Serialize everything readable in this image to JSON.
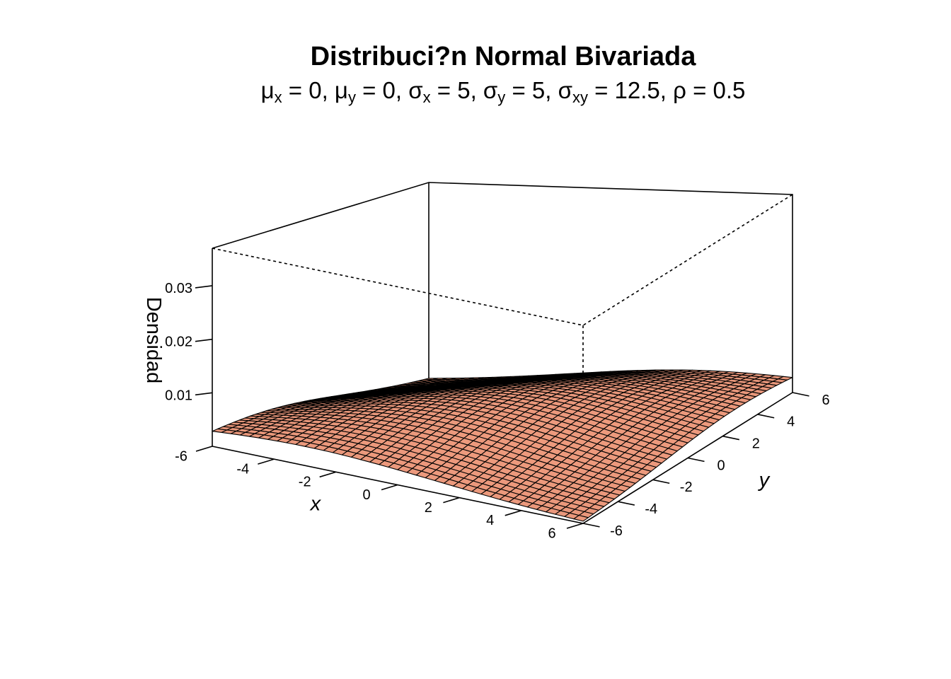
{
  "chart_data": {
    "type": "surface",
    "title": "Distribuci?n Normal Bivariada",
    "subtitle": [
      {
        "t": "μ"
      },
      {
        "t": "x",
        "sub": true
      },
      {
        "t": " = 0, μ"
      },
      {
        "t": "y",
        "sub": true
      },
      {
        "t": " = 0, σ"
      },
      {
        "t": "x",
        "sub": true
      },
      {
        "t": " = 5, σ"
      },
      {
        "t": "y",
        "sub": true
      },
      {
        "t": " = 5, σ"
      },
      {
        "t": "xy",
        "sub": true
      },
      {
        "t": " = 12.5, ρ = 0.5"
      }
    ],
    "xlabel": "x",
    "ylabel": "y",
    "zlabel": "Densidad",
    "xlim": [
      -6,
      6
    ],
    "ylim": [
      -6,
      6
    ],
    "zlim": [
      0,
      0.037
    ],
    "x_ticks": [
      "-6",
      "-4",
      "-2",
      "0",
      "2",
      "4",
      "6"
    ],
    "y_ticks": [
      "-6",
      "-4",
      "-2",
      "0",
      "2",
      "4",
      "6"
    ],
    "z_ticks": [
      "0.01",
      "0.02",
      "0.03"
    ],
    "mu_x": 0,
    "mu_y": 0,
    "sigma_x": 5,
    "sigma_y": 5,
    "sigma_xy": 12.5,
    "rho": 0.5,
    "grid_cells": 40,
    "surface_color": "#e7967a",
    "line_color": "#000000"
  }
}
